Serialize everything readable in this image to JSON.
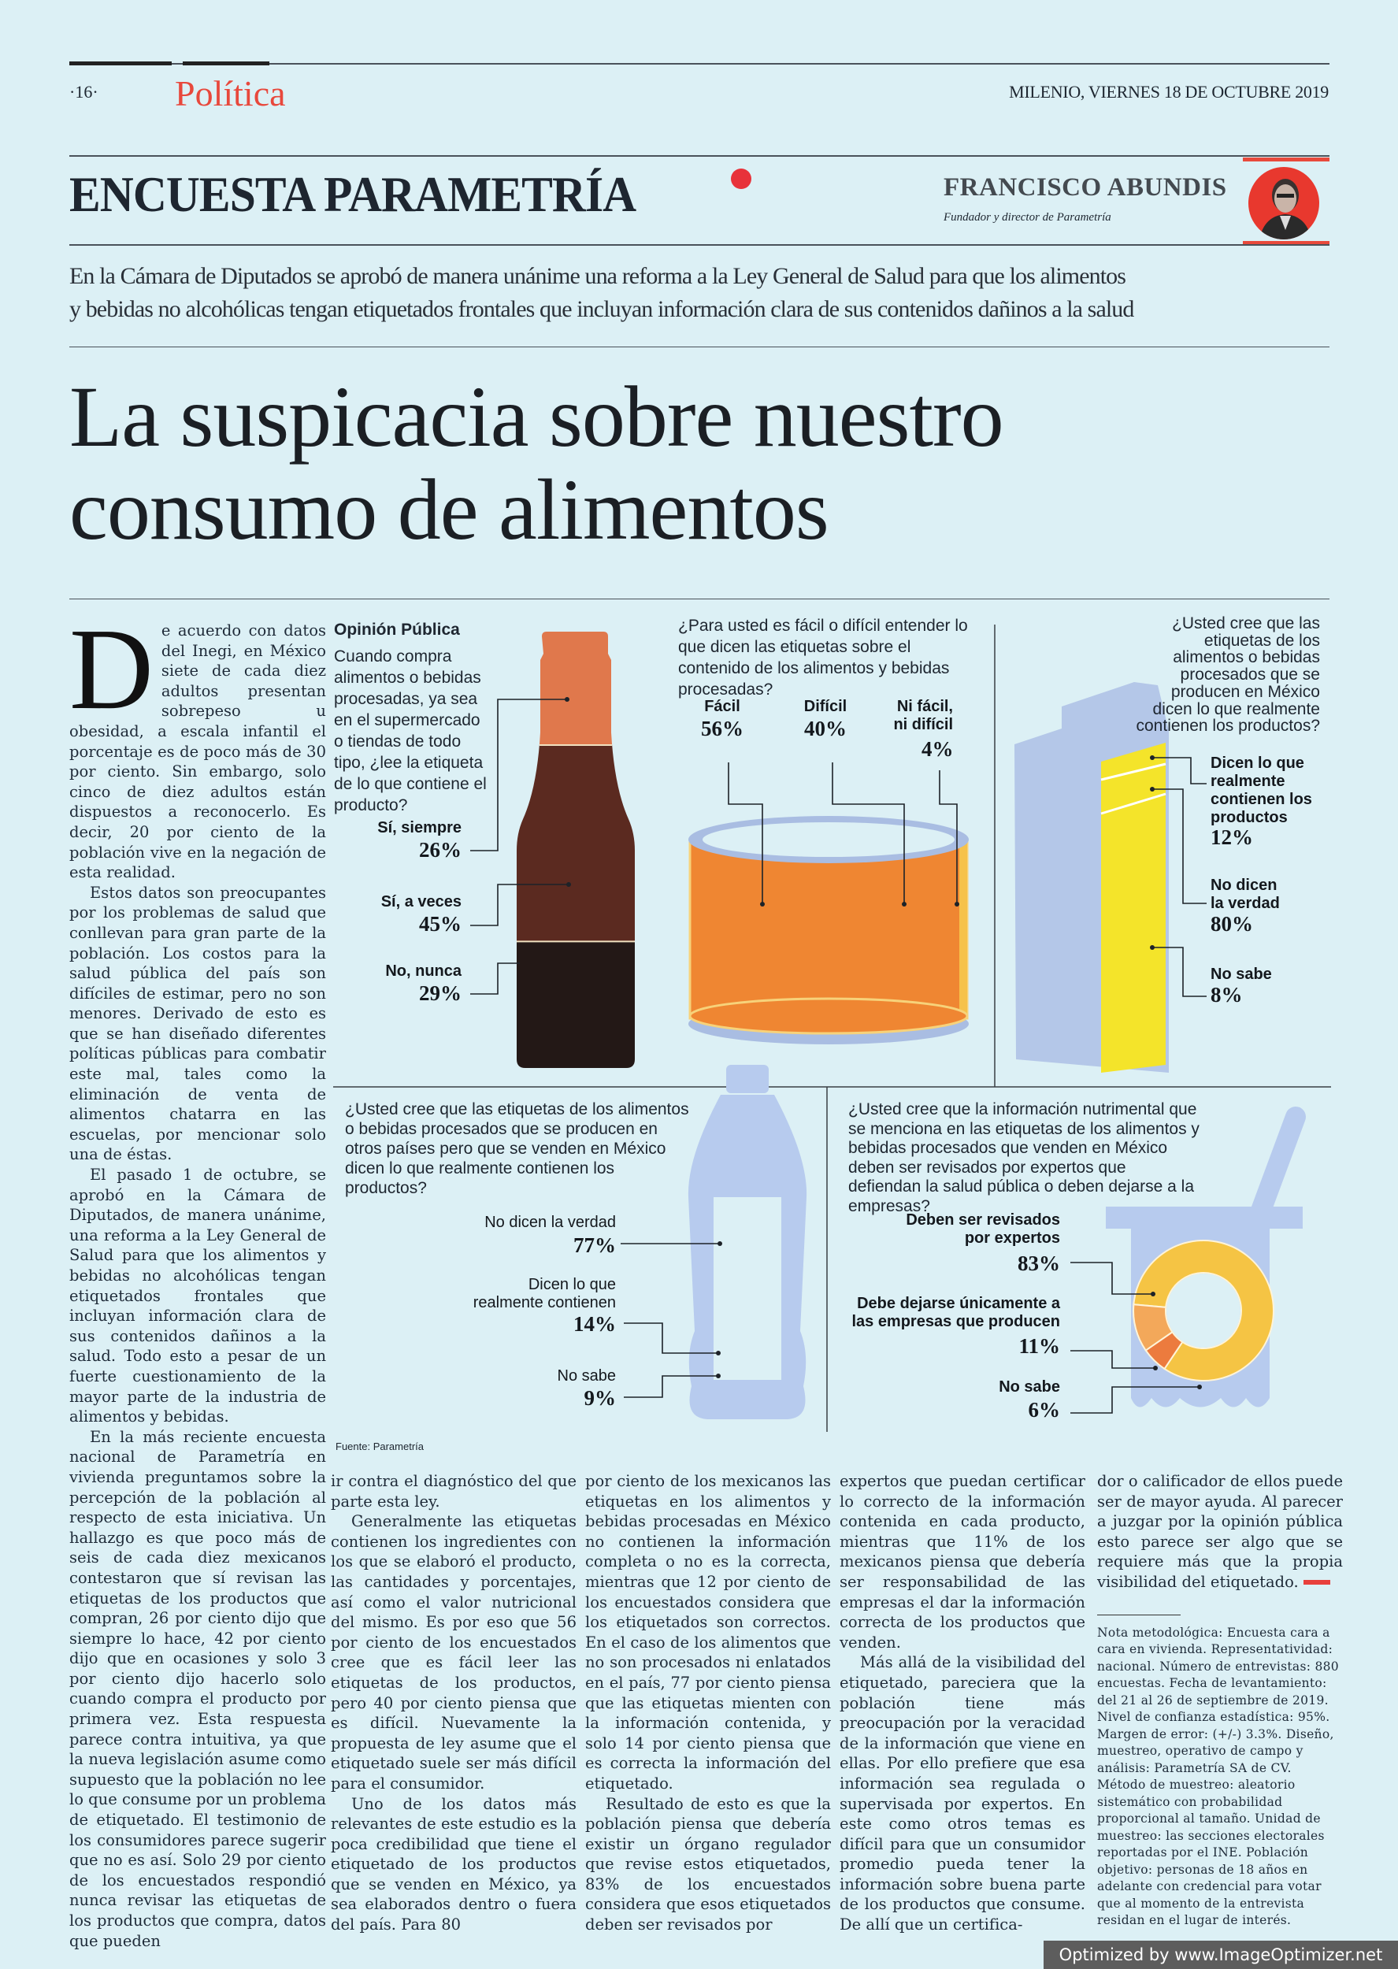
{
  "masthead": {
    "page_number": "·16·",
    "section": "Política",
    "dateline": "MILENIO, VIERNES 18 DE OCTUBRE 2019"
  },
  "column": {
    "title": "ENCUESTA PARAMETRÍA",
    "author_name": "FRANCISCO ABUNDIS",
    "author_role": "Fundador y director de Parametría",
    "accent_color": "#e8323a"
  },
  "deck": [
    "En la Cámara de Diputados se aprobó de manera unánime una reforma a la Ley General de Salud para que los alimentos",
    "y bebidas no alcohólicas tengan etiquetados frontales que incluyan información clara de sus contenidos dañinos a la salud"
  ],
  "headline": [
    "La suspicacia sobre nuestro",
    "consumo de alimentos"
  ],
  "article": {
    "drop_cap": "D",
    "col1": [
      "e acuerdo con datos del Inegi, en México siete de cada diez adultos presentan sobrepeso u obesidad, a escala infantil el porcentaje es de poco más de 30 por ciento. Sin embargo, solo cinco de diez adultos están dispuestos a reconocerlo. Es decir, 20 por ciento de la población vive en la negación de esta realidad.",
      "Estos datos son preocupantes por los problemas de salud que conllevan para gran parte de la población. Los costos para la salud pública del país son difíciles de estimar, pero no son menores. Derivado de esto es que se han diseñado diferentes políticas públicas para combatir este mal, tales como la eliminación de venta de alimentos chatarra en las escuelas, por mencionar solo una de éstas.",
      "El pasado 1 de octubre, se aprobó en la Cámara de Diputados, de manera unánime, una reforma a la Ley General de Salud para que los alimentos y bebidas no alcohólicas tengan etiquetados frontales que incluyan información clara de sus contenidos dañinos a la salud. Todo esto a pesar de un fuerte cuestionamiento de la mayor parte de la industria de alimentos y bebidas.",
      "En la más reciente encuesta nacional de Parametría en vivienda preguntamos sobre la percepción de la población al respecto de esta iniciativa. Un hallazgo es que poco más de seis de cada diez mexicanos contestaron que sí revisan las etiquetas de los productos que compran, 26 por ciento dijo que siempre lo hace, 42 por ciento dijo que en ocasiones y solo 3 por ciento dijo hacerlo solo cuando compra el producto por primera vez. Esta respuesta parece contra intuitiva, ya que la nueva legislación asume como supuesto que la población no lee lo que consume por un problema de etiquetado. El testimonio de los consumidores parece sugerir que no es así. Solo 29 por ciento de los encuestados respondió nunca revisar las etiquetas de los productos que compra, datos que pueden"
    ],
    "col2": [
      "ir contra el diagnóstico del que parte esta ley.",
      "Generalmente las etiquetas contienen los ingredientes con los que se elaboró el producto, las cantidades y porcentajes, así como el valor nutricional del mismo. Es por eso que 56 por ciento de los encuestados cree que es fácil leer las etiquetas de los productos, pero 40 por ciento piensa que es difícil. Nuevamente la propuesta de ley asume que el etiquetado suele ser más difícil para el consumidor.",
      "Uno de los datos más relevantes de este estudio es la poca credibilidad que tiene el etiquetado de los productos que se venden en México, ya sea elaborados dentro o fuera del país. Para 80"
    ],
    "col3": [
      "por ciento de los mexicanos las etiquetas en los alimentos y bebidas procesadas en México no contienen la información completa o no es la correcta, mientras que 12 por ciento de los encuestados considera que los etiquetados son correctos. En el caso de los alimentos que no son procesados ni enlatados en el país, 77 por ciento piensa que las etiquetas mienten con la información contenida, y solo 14 por ciento piensa que es correcta la información del etiquetado.",
      "Resultado de esto es que la población piensa que debería existir un órgano regulador que revise estos etiquetados, 83% de los encuestados considera que esos etiquetados deben ser revisados por"
    ],
    "col4": [
      "expertos que puedan certificar lo correcto de la información contenida en cada producto, mientras que 11% de los mexicanos piensa que debería ser responsabilidad de las empresas el dar la información correcta de los productos que venden.",
      "Más allá de la visibilidad del etiquetado, pareciera que la población tiene más preocupación por la veracidad de la información que viene en ellas. Por ello prefiere que esa información sea regulada o supervisada por expertos. En este como otros temas es difícil para que un consumidor promedio pueda tener la información sobre buena parte de los productos que consume. De allí que un certifica-"
    ],
    "col5": [
      "dor o calificador de ellos puede ser de mayor ayuda. Al parecer a juzgar por la opinión pública esto parece ser algo que se requiere más que la propia visibilidad del etiquetado."
    ],
    "method_note": "Nota metodológica: Encuesta cara a cara en vivienda. Representatividad: nacional. Número de entrevistas: 880 encuestas. Fecha de levantamiento: del 21 al 26 de septiembre de 2019. Nivel de confianza estadística: 95%. Margen de error: (+/-) 3.3%. Diseño, muestreo, operativo de campo y análisis: Parametría SA de CV. Método de muestreo: aleatorio sistemático con probabilidad proporcional al tamaño. Unidad de muestreo: las secciones electorales reportadas por el INE. Población objetivo: personas de 18 años en adelante con credencial para votar que al momento de la entrevista residan en el lugar de interés."
  },
  "infographic": {
    "kicker": "Opinión Pública",
    "source": "Fuente: Parametría",
    "read_label": {
      "question": "Cuando compra alimentos o bebidas procesadas, ya sea en el supermercado o tiendas de todo tipo, ¿lee la etiqueta de lo que contiene el producto?",
      "answers": [
        {
          "label": "Sí, siempre",
          "value": "26%",
          "pct": 26,
          "color": "#e0784c"
        },
        {
          "label": "Sí, a veces",
          "value": "45%",
          "pct": 45,
          "color": "#5b2a20"
        },
        {
          "label": "No, nunca",
          "value": "29%",
          "pct": 29,
          "color": "#231816"
        }
      ]
    },
    "ease": {
      "question": "¿Para usted es fácil o difícil entender lo que dicen las etiquetas sobre el contenido de los alimentos y bebidas procesadas?",
      "answers": [
        {
          "label": "Fácil",
          "value": "56%"
        },
        {
          "label": "Difícil",
          "value": "40%"
        },
        {
          "label_lines": [
            "Ni fácil,",
            "ni difícil"
          ],
          "value": "4%"
        }
      ]
    },
    "domestic": {
      "question": "¿Usted cree que las etiquetas de los alimentos o bebidas procesados que se producen en México dicen lo que realmente contienen los productos?",
      "answers": [
        {
          "label_lines": [
            "Dicen lo que",
            "realmente",
            "contienen los",
            "productos"
          ],
          "value": "12%"
        },
        {
          "label_lines": [
            "No dicen",
            "la verdad"
          ],
          "value": "80%"
        },
        {
          "label": "No sabe",
          "value": "8%"
        }
      ]
    },
    "imported": {
      "question": "¿Usted cree que las etiquetas de los alimentos o bebidas procesados que se producen en otros países pero que se venden en México dicen lo que realmente contienen los productos?",
      "answers": [
        {
          "label": "No dicen la verdad",
          "value": "77%"
        },
        {
          "label_lines": [
            "Dicen lo que",
            "realmente contienen"
          ],
          "value": "14%"
        },
        {
          "label": "No sabe",
          "value": "9%"
        }
      ]
    },
    "review": {
      "question": "¿Usted cree que la información nutrimental que se menciona en las etiquetas de los alimentos y bebidas procesados que venden en México deben ser revisados por expertos que defiendan la salud pública o deben dejarse a la empresas?",
      "answers": [
        {
          "label_lines": [
            "Deben ser revisados",
            "por expertos"
          ],
          "value": "83%",
          "pct": 83,
          "color": "#f5c444"
        },
        {
          "label_lines": [
            "Debe dejarse únicamente a",
            "las empresas que producen"
          ],
          "value": "11%",
          "pct": 11,
          "color": "#f3a85a"
        },
        {
          "label": "No sabe",
          "value": "6%",
          "pct": 6,
          "color": "#ec7b3e"
        }
      ]
    }
  },
  "watermark": "Optimized by www.ImageOptimizer.net"
}
